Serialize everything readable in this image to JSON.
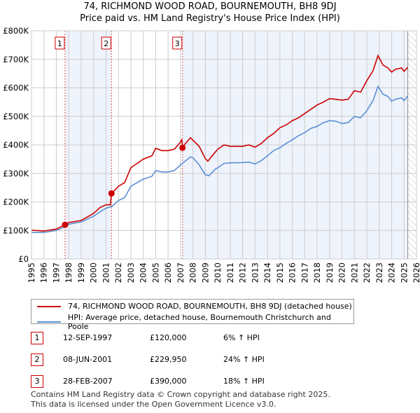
{
  "title_line1": "74, RICHMOND WOOD ROAD, BOURNEMOUTH, BH8 9DJ",
  "title_line2": "Price paid vs. HM Land Registry's House Price Index (HPI)",
  "chart_data": {
    "type": "line",
    "title": "74, RICHMOND WOOD ROAD, BOURNEMOUTH, BH8 9DJ — Price paid vs. HM Land Registry's House Price Index (HPI)",
    "xlim": [
      1995,
      2026
    ],
    "ylim": [
      0,
      800000
    ],
    "y_ticks": [
      {
        "v": 0,
        "label": "£0"
      },
      {
        "v": 100000,
        "label": "£100K"
      },
      {
        "v": 200000,
        "label": "£200K"
      },
      {
        "v": 300000,
        "label": "£300K"
      },
      {
        "v": 400000,
        "label": "£400K"
      },
      {
        "v": 500000,
        "label": "£500K"
      },
      {
        "v": 600000,
        "label": "£600K"
      },
      {
        "v": 700000,
        "label": "£700K"
      },
      {
        "v": 800000,
        "label": "£800K"
      }
    ],
    "x_ticks": [
      "1995",
      "1996",
      "1997",
      "1998",
      "1999",
      "2000",
      "2001",
      "2002",
      "2003",
      "2004",
      "2005",
      "2006",
      "2007",
      "2008",
      "2009",
      "2010",
      "2011",
      "2012",
      "2013",
      "2014",
      "2015",
      "2016",
      "2017",
      "2018",
      "2019",
      "2020",
      "2021",
      "2022",
      "2023",
      "2024",
      "2025",
      "2026"
    ],
    "grid": true,
    "series": [
      {
        "name": "74, RICHMOND WOOD ROAD, BOURNEMOUTH, BH8 9DJ (detached house)",
        "color": "#cc0000",
        "x": [
          1995,
          1996,
          1997,
          1997.7,
          1998,
          1999,
          2000,
          2000.5,
          2001,
          2001.35,
          2001.45,
          2002,
          2002.5,
          2003,
          2004,
          2004.7,
          2005,
          2005.5,
          2006,
          2006.5,
          2007,
          2007.1,
          2007.16,
          2007.3,
          2007.8,
          2008.5,
          2009,
          2009.2,
          2009.8,
          2010,
          2010.5,
          2011,
          2012,
          2012.5,
          2013,
          2013.5,
          2014,
          2014.5,
          2015,
          2015.5,
          2016,
          2016.5,
          2017,
          2017.5,
          2018,
          2018.5,
          2019,
          2019.5,
          2020,
          2020.5,
          2021,
          2021.5,
          2022,
          2022.5,
          2022.9,
          2023.3,
          2023.7,
          2024,
          2024.3,
          2024.8,
          2025,
          2025.3
        ],
        "y": [
          101000,
          98000,
          105000,
          120000,
          128000,
          135000,
          160000,
          180000,
          190000,
          190000,
          230000,
          255000,
          268000,
          320000,
          350000,
          362000,
          388000,
          380000,
          380000,
          385000,
          410000,
          420000,
          390000,
          400000,
          425000,
          395000,
          352000,
          343000,
          375000,
          385000,
          400000,
          395000,
          395000,
          400000,
          392000,
          405000,
          425000,
          440000,
          460000,
          470000,
          485000,
          495000,
          510000,
          525000,
          540000,
          550000,
          562000,
          560000,
          557000,
          560000,
          590000,
          585000,
          625000,
          660000,
          713000,
          680000,
          670000,
          655000,
          665000,
          670000,
          658000,
          672000
        ]
      },
      {
        "name": "HPI: Average price, detached house, Bournemouth Christchurch and Poole",
        "color": "#5b8fd4",
        "x": [
          1995,
          1996,
          1997,
          1997.7,
          1998,
          1999,
          2000,
          2000.5,
          2001,
          2001.5,
          2002,
          2002.5,
          2003,
          2004,
          2004.7,
          2005,
          2005.5,
          2006,
          2006.5,
          2007,
          2007.8,
          2008,
          2008.5,
          2009,
          2009.3,
          2009.8,
          2010,
          2010.5,
          2011,
          2012,
          2012.5,
          2013,
          2013.5,
          2014,
          2014.5,
          2015,
          2015.5,
          2016,
          2016.5,
          2017,
          2017.5,
          2018,
          2018.5,
          2019,
          2019.5,
          2020,
          2020.5,
          2021,
          2021.5,
          2022,
          2022.5,
          2022.9,
          2023.3,
          2023.7,
          2024,
          2024.3,
          2024.8,
          2025,
          2025.3
        ],
        "y": [
          93000,
          93000,
          100000,
          113000,
          122000,
          130000,
          150000,
          165000,
          178000,
          185000,
          205000,
          215000,
          255000,
          280000,
          290000,
          310000,
          305000,
          305000,
          310000,
          330000,
          358000,
          355000,
          330000,
          295000,
          292000,
          315000,
          320000,
          335000,
          337000,
          338000,
          340000,
          333000,
          345000,
          362000,
          380000,
          390000,
          405000,
          418000,
          432000,
          443000,
          458000,
          465000,
          478000,
          485000,
          483000,
          475000,
          478000,
          500000,
          495000,
          520000,
          555000,
          605000,
          578000,
          570000,
          553000,
          560000,
          565000,
          555000,
          572000
        ]
      }
    ],
    "sales": [
      {
        "label": "1",
        "x": 1997.7,
        "y": 120000
      },
      {
        "label": "2",
        "x": 2001.44,
        "y": 229950
      },
      {
        "label": "3",
        "x": 2007.16,
        "y": 390000
      }
    ],
    "data_end": 2025.3,
    "legend_placement": "below"
  },
  "table": [
    {
      "num": "1",
      "date": "12-SEP-1997",
      "price": "£120,000",
      "hpi": "6% ↑ HPI"
    },
    {
      "num": "2",
      "date": "08-JUN-2001",
      "price": "£229,950",
      "hpi": "24% ↑ HPI"
    },
    {
      "num": "3",
      "date": "28-FEB-2007",
      "price": "£390,000",
      "hpi": "18% ↑ HPI"
    }
  ],
  "footer_line1": "Contains HM Land Registry data © Crown copyright and database right 2025.",
  "footer_line2": "This data is licensed under the Open Government Licence v3.0."
}
